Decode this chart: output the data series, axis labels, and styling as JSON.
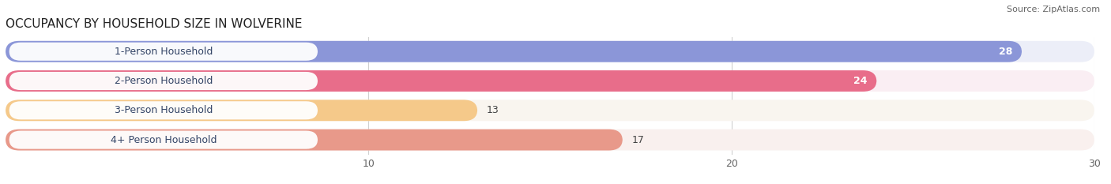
{
  "title": "OCCUPANCY BY HOUSEHOLD SIZE IN WOLVERINE",
  "source": "Source: ZipAtlas.com",
  "categories": [
    "1-Person Household",
    "2-Person Household",
    "3-Person Household",
    "4+ Person Household"
  ],
  "values": [
    28,
    24,
    13,
    17
  ],
  "bar_colors": [
    "#8b96d8",
    "#e86d8a",
    "#f5c98a",
    "#e8998a"
  ],
  "bar_bg_colors": [
    "#eceef8",
    "#faeef3",
    "#f9f5ef",
    "#f9f0ee"
  ],
  "value_inside": [
    true,
    true,
    false,
    false
  ],
  "xlim": [
    0,
    30
  ],
  "xticks": [
    10,
    20,
    30
  ],
  "figsize": [
    14.06,
    2.33
  ],
  "dpi": 100
}
